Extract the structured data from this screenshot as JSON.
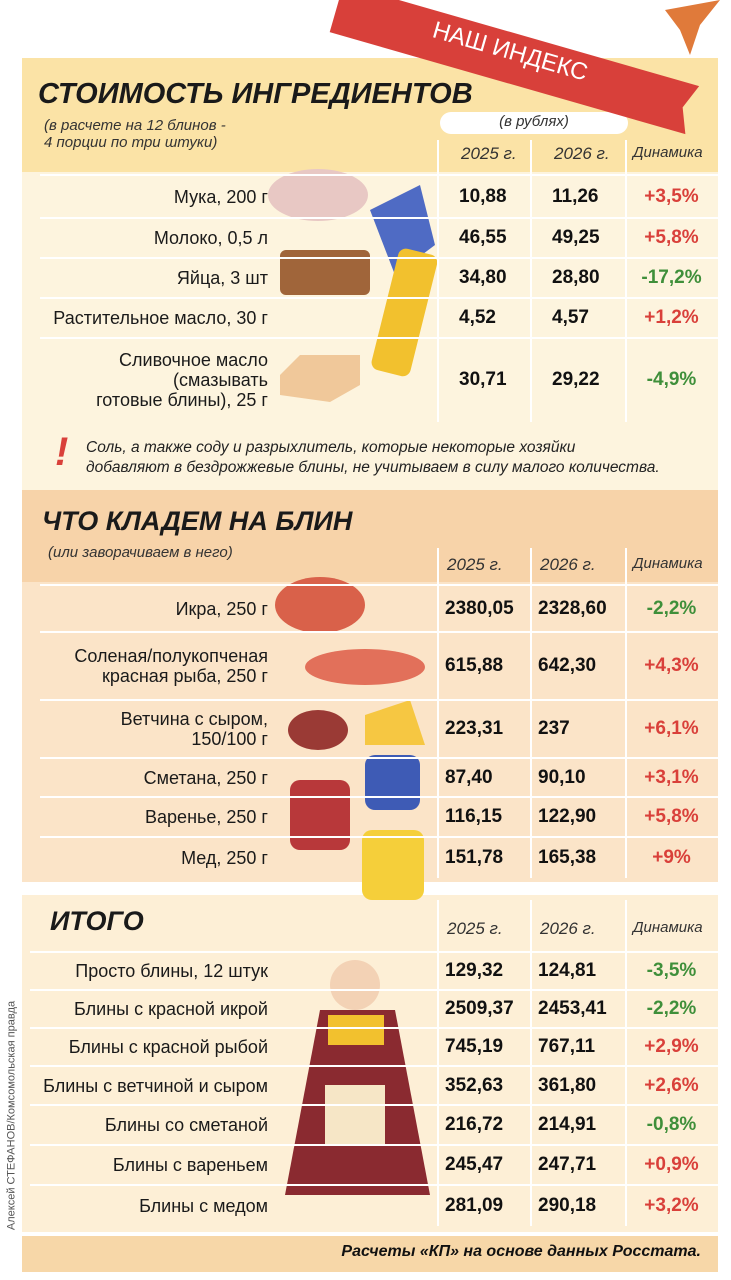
{
  "banner": "НАШ ИНДЕКС",
  "sections": [
    {
      "title": "СТОИМОСТЬ ИНГРЕДИЕНТОВ",
      "subtitle": [
        "(в расчете на 12 блинов -",
        "4 порции по три штуки)"
      ],
      "unit": "(в рублях)",
      "columns": [
        "2025 г.",
        "2026 г.",
        "Динамика"
      ],
      "rows": [
        {
          "name": [
            "Мука, 200 г"
          ],
          "values": [
            "10,88",
            "11,26",
            "+3,5%"
          ]
        },
        {
          "name": [
            "Молоко, 0,5 л"
          ],
          "values": [
            "46,55",
            "49,25",
            "+5,8%"
          ]
        },
        {
          "name": [
            "Яйца, 3 шт"
          ],
          "values": [
            "34,80",
            "28,80",
            "-17,2%"
          ]
        },
        {
          "name": [
            "Растительное масло, 30 г"
          ],
          "values": [
            "4,52",
            "4,57",
            "+1,2%"
          ]
        },
        {
          "name": [
            "Сливочное масло",
            "(смазывать",
            "готовые блины), 25 г"
          ],
          "values": [
            "30,71",
            "29,22",
            "-4,9%"
          ]
        }
      ]
    },
    {
      "title": "ЧТО КЛАДЕМ НА БЛИН",
      "subtitle": [
        "(или заворачиваем в него)"
      ],
      "columns": [
        "2025 г.",
        "2026 г.",
        "Динамика"
      ],
      "rows": [
        {
          "name": [
            "Икра, 250 г"
          ],
          "values": [
            "2380,05",
            "2328,60",
            "-2,2%"
          ]
        },
        {
          "name": [
            "Соленая/полукопченая",
            "красная рыба, 250 г"
          ],
          "values": [
            "615,88",
            "642,30",
            "+4,3%"
          ]
        },
        {
          "name": [
            "Ветчина с сыром,",
            "150/100 г"
          ],
          "values": [
            "223,31",
            "237",
            "+6,1%"
          ]
        },
        {
          "name": [
            "Сметана, 250 г"
          ],
          "values": [
            "87,40",
            "90,10",
            "+3,1%"
          ]
        },
        {
          "name": [
            "Варенье, 250 г"
          ],
          "values": [
            "116,15",
            "122,90",
            "+5,8%"
          ]
        },
        {
          "name": [
            "Мед, 250 г"
          ],
          "values": [
            "151,78",
            "165,38",
            "+9%"
          ]
        }
      ]
    },
    {
      "title": "ИТОГО",
      "columns": [
        "2025 г.",
        "2026 г.",
        "Динамика"
      ],
      "rows": [
        {
          "name": [
            "Просто блины, 12 штук"
          ],
          "values": [
            "129,32",
            "124,81",
            "-3,5%"
          ]
        },
        {
          "name": [
            "Блины с красной икрой"
          ],
          "values": [
            "2509,37",
            "2453,41",
            "-2,2%"
          ]
        },
        {
          "name": [
            "Блины с красной рыбой"
          ],
          "values": [
            "745,19",
            "767,11",
            "+2,9%"
          ]
        },
        {
          "name": [
            "Блины с ветчиной и сыром"
          ],
          "values": [
            "352,63",
            "361,80",
            "+2,6%"
          ]
        },
        {
          "name": [
            "Блины со сметаной"
          ],
          "values": [
            "216,72",
            "214,91",
            "-0,8%"
          ]
        },
        {
          "name": [
            "Блины с вареньем"
          ],
          "values": [
            "245,47",
            "247,71",
            "+0,9%"
          ]
        },
        {
          "name": [
            "Блины с медом"
          ],
          "values": [
            "281,09",
            "290,18",
            "+3,2%"
          ]
        }
      ]
    }
  ],
  "note": {
    "mark": "!",
    "lines": [
      "Соль, а также соду и разрыхлитель, которые некоторые хозяйки",
      "добавляют в бездрожжевые блины, не учитываем в силу малого количества."
    ]
  },
  "footer": "Расчеты «КП» на основе данных Росстата.",
  "credit": "Алексей СТЕФАНОВ/Комсомольская правда"
}
